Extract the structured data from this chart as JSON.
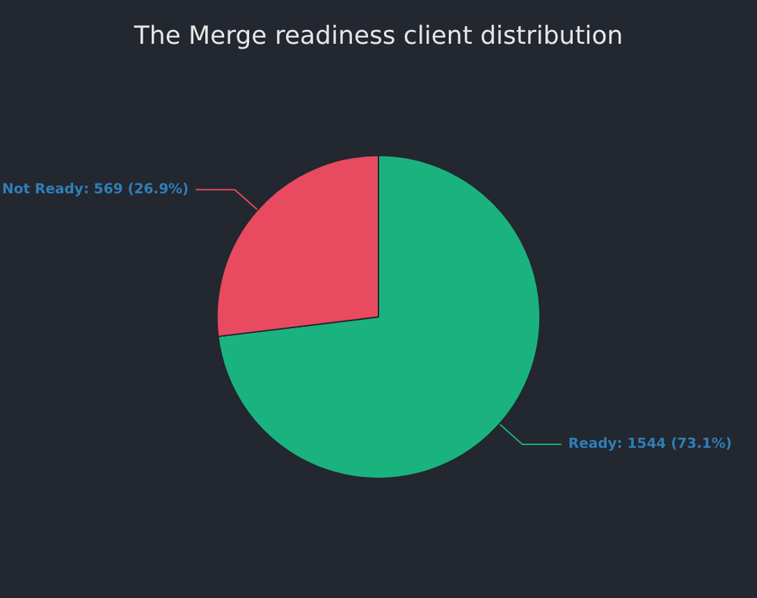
{
  "chart_data": {
    "type": "pie",
    "title": "The Merge readiness client distribution",
    "categories": [
      "Ready",
      "Not Ready"
    ],
    "values": [
      1544,
      569
    ],
    "colors": [
      "#1ab37f",
      "#e84a5f"
    ],
    "value_labels": [
      "1544 (73.1%)",
      "569 (26.9%)"
    ],
    "legend": false
  }
}
